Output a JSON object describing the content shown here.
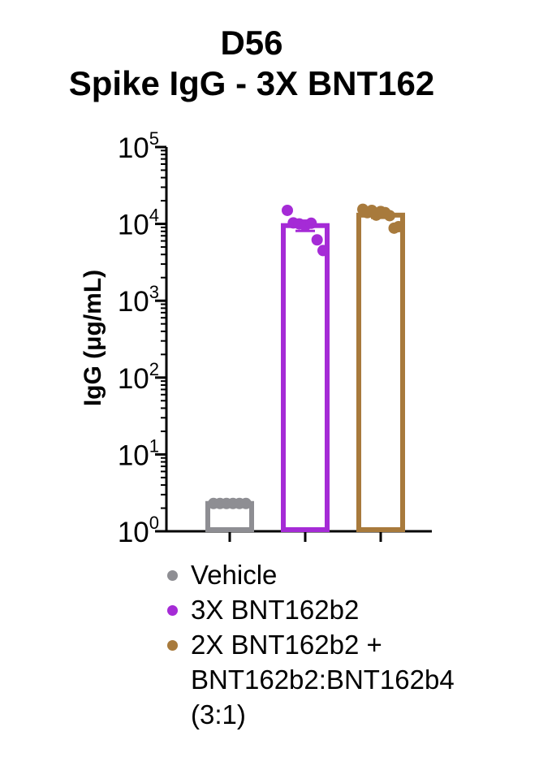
{
  "chart_data": {
    "type": "bar",
    "title": "D56",
    "subtitle": "Spike IgG - 3X BNT162",
    "ylabel": "IgG (μg/mL)",
    "xlabel": "",
    "yscale": "log",
    "ylim": [
      1,
      100000
    ],
    "y_tick_values": [
      1,
      10,
      100,
      1000,
      10000,
      100000
    ],
    "y_tick_labels": [
      {
        "base": "10",
        "exp": "0"
      },
      {
        "base": "10",
        "exp": "1"
      },
      {
        "base": "10",
        "exp": "2"
      },
      {
        "base": "10",
        "exp": "3"
      },
      {
        "base": "10",
        "exp": "4"
      },
      {
        "base": "10",
        "exp": "5"
      }
    ],
    "grid": false,
    "legend_position": "bottom",
    "series": [
      {
        "name": "Vehicle",
        "color": "#8e8e93",
        "mean": 2.3,
        "error": [
          2.2,
          2.4
        ],
        "points": [
          2.3,
          2.3,
          2.3,
          2.3,
          2.3,
          2.3
        ]
      },
      {
        "name": "3X BNT162b2",
        "color": "#a52bd6",
        "mean": 9500,
        "error": [
          8100,
          11000
        ],
        "points": [
          15000,
          10300,
          10000,
          9500,
          10200,
          6200,
          4500
        ]
      },
      {
        "name": "2X BNT162b2 +\nBNT162b2:BNT162b4\n(3:1)",
        "color": "#a87a3c",
        "mean": 13000,
        "error": [
          12000,
          14000
        ],
        "points": [
          15500,
          14000,
          15000,
          13000,
          14500,
          14000,
          12800,
          8800,
          9200
        ]
      }
    ]
  }
}
